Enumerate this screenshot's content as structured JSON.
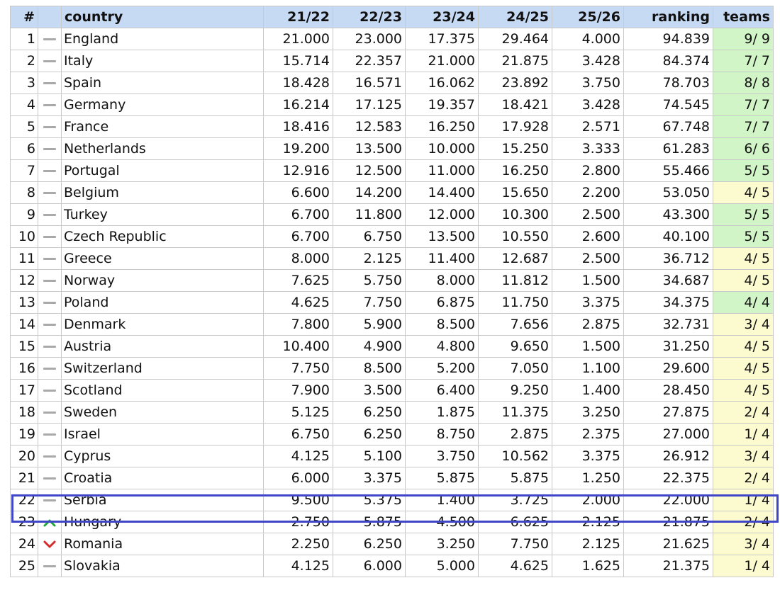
{
  "table": {
    "headers": {
      "rank": "#",
      "trend": "",
      "country": "country",
      "y1": "21/22",
      "y2": "22/23",
      "y3": "23/24",
      "y4": "24/25",
      "y5": "25/26",
      "ranking": "ranking",
      "teams": "teams"
    },
    "rows": [
      {
        "rank": "1",
        "trend": "none",
        "country": "England",
        "y1": "21.000",
        "y2": "23.000",
        "y3": "17.375",
        "y4": "29.464",
        "y5": "4.000",
        "ranking": "94.839",
        "teams": "9/ 9",
        "teams_status": "full"
      },
      {
        "rank": "2",
        "trend": "none",
        "country": "Italy",
        "y1": "15.714",
        "y2": "22.357",
        "y3": "21.000",
        "y4": "21.875",
        "y5": "3.428",
        "ranking": "84.374",
        "teams": "7/ 7",
        "teams_status": "full"
      },
      {
        "rank": "3",
        "trend": "none",
        "country": "Spain",
        "y1": "18.428",
        "y2": "16.571",
        "y3": "16.062",
        "y4": "23.892",
        "y5": "3.750",
        "ranking": "78.703",
        "teams": "8/ 8",
        "teams_status": "full"
      },
      {
        "rank": "4",
        "trend": "none",
        "country": "Germany",
        "y1": "16.214",
        "y2": "17.125",
        "y3": "19.357",
        "y4": "18.421",
        "y5": "3.428",
        "ranking": "74.545",
        "teams": "7/ 7",
        "teams_status": "full"
      },
      {
        "rank": "5",
        "trend": "none",
        "country": "France",
        "y1": "18.416",
        "y2": "12.583",
        "y3": "16.250",
        "y4": "17.928",
        "y5": "2.571",
        "ranking": "67.748",
        "teams": "7/ 7",
        "teams_status": "full"
      },
      {
        "rank": "6",
        "trend": "none",
        "country": "Netherlands",
        "y1": "19.200",
        "y2": "13.500",
        "y3": "10.000",
        "y4": "15.250",
        "y5": "3.333",
        "ranking": "61.283",
        "teams": "6/ 6",
        "teams_status": "full"
      },
      {
        "rank": "7",
        "trend": "none",
        "country": "Portugal",
        "y1": "12.916",
        "y2": "12.500",
        "y3": "11.000",
        "y4": "16.250",
        "y5": "2.800",
        "ranking": "55.466",
        "teams": "5/ 5",
        "teams_status": "full"
      },
      {
        "rank": "8",
        "trend": "none",
        "country": "Belgium",
        "y1": "6.600",
        "y2": "14.200",
        "y3": "14.400",
        "y4": "15.650",
        "y5": "2.200",
        "ranking": "53.050",
        "teams": "4/ 5",
        "teams_status": "partial"
      },
      {
        "rank": "9",
        "trend": "none",
        "country": "Turkey",
        "y1": "6.700",
        "y2": "11.800",
        "y3": "12.000",
        "y4": "10.300",
        "y5": "2.500",
        "ranking": "43.300",
        "teams": "5/ 5",
        "teams_status": "full"
      },
      {
        "rank": "10",
        "trend": "none",
        "country": "Czech Republic",
        "y1": "6.700",
        "y2": "6.750",
        "y3": "13.500",
        "y4": "10.550",
        "y5": "2.600",
        "ranking": "40.100",
        "teams": "5/ 5",
        "teams_status": "full"
      },
      {
        "rank": "11",
        "trend": "none",
        "country": "Greece",
        "y1": "8.000",
        "y2": "2.125",
        "y3": "11.400",
        "y4": "12.687",
        "y5": "2.500",
        "ranking": "36.712",
        "teams": "4/ 5",
        "teams_status": "partial"
      },
      {
        "rank": "12",
        "trend": "none",
        "country": "Norway",
        "y1": "7.625",
        "y2": "5.750",
        "y3": "8.000",
        "y4": "11.812",
        "y5": "1.500",
        "ranking": "34.687",
        "teams": "4/ 5",
        "teams_status": "partial"
      },
      {
        "rank": "13",
        "trend": "none",
        "country": "Poland",
        "y1": "4.625",
        "y2": "7.750",
        "y3": "6.875",
        "y4": "11.750",
        "y5": "3.375",
        "ranking": "34.375",
        "teams": "4/ 4",
        "teams_status": "full"
      },
      {
        "rank": "14",
        "trend": "none",
        "country": "Denmark",
        "y1": "7.800",
        "y2": "5.900",
        "y3": "8.500",
        "y4": "7.656",
        "y5": "2.875",
        "ranking": "32.731",
        "teams": "3/ 4",
        "teams_status": "partial"
      },
      {
        "rank": "15",
        "trend": "none",
        "country": "Austria",
        "y1": "10.400",
        "y2": "4.900",
        "y3": "4.800",
        "y4": "9.650",
        "y5": "1.500",
        "ranking": "31.250",
        "teams": "4/ 5",
        "teams_status": "partial"
      },
      {
        "rank": "16",
        "trend": "none",
        "country": "Switzerland",
        "y1": "7.750",
        "y2": "8.500",
        "y3": "5.200",
        "y4": "7.050",
        "y5": "1.100",
        "ranking": "29.600",
        "teams": "4/ 5",
        "teams_status": "partial"
      },
      {
        "rank": "17",
        "trend": "none",
        "country": "Scotland",
        "y1": "7.900",
        "y2": "3.500",
        "y3": "6.400",
        "y4": "9.250",
        "y5": "1.400",
        "ranking": "28.450",
        "teams": "4/ 5",
        "teams_status": "partial"
      },
      {
        "rank": "18",
        "trend": "none",
        "country": "Sweden",
        "y1": "5.125",
        "y2": "6.250",
        "y3": "1.875",
        "y4": "11.375",
        "y5": "3.250",
        "ranking": "27.875",
        "teams": "2/ 4",
        "teams_status": "partial"
      },
      {
        "rank": "19",
        "trend": "none",
        "country": "Israel",
        "y1": "6.750",
        "y2": "6.250",
        "y3": "8.750",
        "y4": "2.875",
        "y5": "2.375",
        "ranking": "27.000",
        "teams": "1/ 4",
        "teams_status": "partial"
      },
      {
        "rank": "20",
        "trend": "none",
        "country": "Cyprus",
        "y1": "4.125",
        "y2": "5.100",
        "y3": "3.750",
        "y4": "10.562",
        "y5": "3.375",
        "ranking": "26.912",
        "teams": "3/ 4",
        "teams_status": "partial"
      },
      {
        "rank": "21",
        "trend": "none",
        "country": "Croatia",
        "y1": "6.000",
        "y2": "3.375",
        "y3": "5.875",
        "y4": "5.875",
        "y5": "1.250",
        "ranking": "22.375",
        "teams": "2/ 4",
        "teams_status": "partial",
        "clipped": true
      },
      {
        "rank": "22",
        "trend": "none",
        "country": "Serbia",
        "y1": "9.500",
        "y2": "5.375",
        "y3": "1.400",
        "y4": "3.725",
        "y5": "2.000",
        "ranking": "22.000",
        "teams": "1/ 4",
        "teams_status": "partial",
        "highlighted": true
      },
      {
        "rank": "23",
        "trend": "up",
        "country": "Hungary",
        "y1": "2.750",
        "y2": "5.875",
        "y3": "4.500",
        "y4": "6.625",
        "y5": "2.125",
        "ranking": "21.875",
        "teams": "2/ 4",
        "teams_status": "partial"
      },
      {
        "rank": "24",
        "trend": "down",
        "country": "Romania",
        "y1": "2.250",
        "y2": "6.250",
        "y3": "3.250",
        "y4": "7.750",
        "y5": "2.125",
        "ranking": "21.625",
        "teams": "3/ 4",
        "teams_status": "partial"
      },
      {
        "rank": "25",
        "trend": "none",
        "country": "Slovakia",
        "y1": "4.125",
        "y2": "6.000",
        "y3": "5.000",
        "y4": "4.625",
        "y5": "1.625",
        "ranking": "21.375",
        "teams": "1/ 4",
        "teams_status": "partial"
      }
    ]
  },
  "icons": {
    "none": "dash-icon",
    "up": "arrow-up-icon",
    "down": "arrow-down-icon"
  },
  "colors": {
    "header_bg": "#c6daf3",
    "teams_full_bg": "#d2f5c8",
    "teams_partial_bg": "#fbfbcf",
    "highlight_border": "#3f46c7",
    "trend_up": "#22a83a",
    "trend_down": "#d52b2b"
  }
}
